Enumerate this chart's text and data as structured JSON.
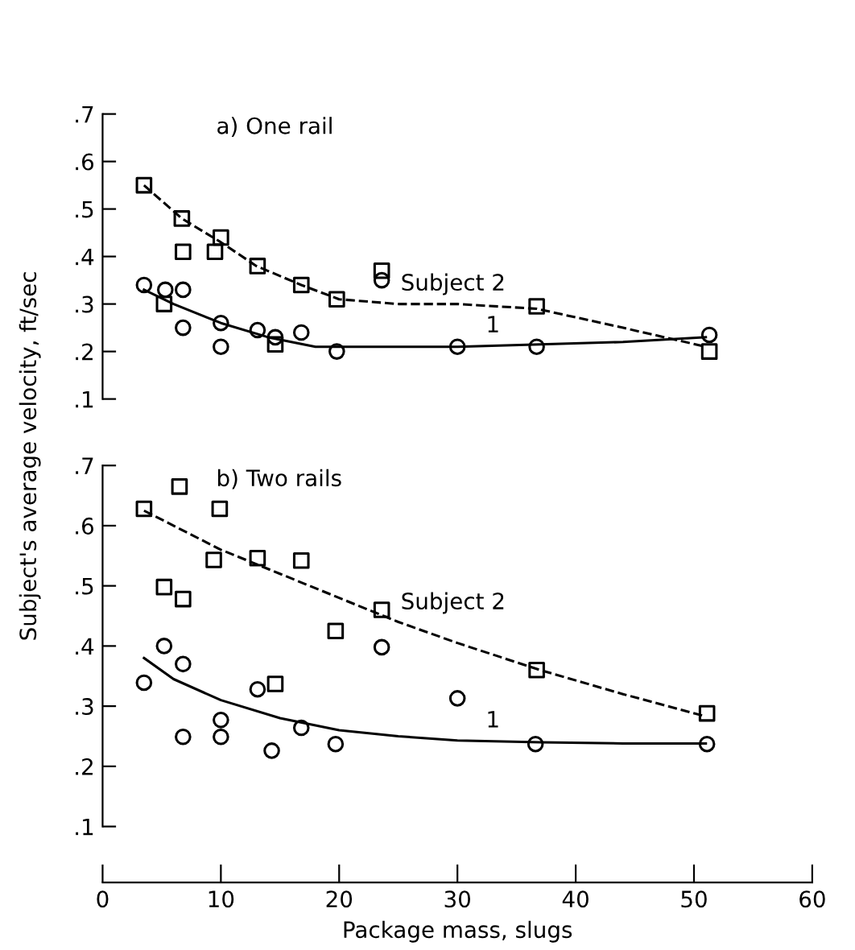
{
  "chart_data": [
    {
      "type": "scatter",
      "title": "a) One rail",
      "ylabel": "Subject's average velocity, ft/sec",
      "xlim": [
        0,
        60
      ],
      "ylim": [
        0.1,
        0.7
      ],
      "tick_labels": "y",
      "grid": false,
      "legend": false,
      "yticks": [
        {
          "value": 0.1,
          "label": ".1"
        },
        {
          "value": 0.2,
          "label": ".2"
        },
        {
          "value": 0.3,
          "label": ".3"
        },
        {
          "value": 0.4,
          "label": ".4"
        },
        {
          "value": 0.5,
          "label": ".5"
        },
        {
          "value": 0.6,
          "label": ".6"
        },
        {
          "value": 0.7,
          "label": ".7"
        }
      ],
      "series": [
        {
          "type": "scatter",
          "marker": "square",
          "color": "#000000",
          "x": [
            3.5,
            6.7,
            6.8,
            9.5,
            10.0,
            13.1,
            16.8,
            19.8,
            23.6,
            5.2,
            14.6,
            36.7,
            51.3
          ],
          "values": [
            0.55,
            0.48,
            0.41,
            0.41,
            0.44,
            0.38,
            0.34,
            0.31,
            0.37,
            0.3,
            0.215,
            0.295,
            0.2
          ]
        },
        {
          "type": "scatter",
          "marker": "circle",
          "color": "#000000",
          "x": [
            3.5,
            5.3,
            6.8,
            6.8,
            10.0,
            10.0,
            13.1,
            14.6,
            16.8,
            19.8,
            23.6,
            30.0,
            36.7,
            51.3
          ],
          "values": [
            0.34,
            0.33,
            0.33,
            0.25,
            0.26,
            0.21,
            0.245,
            0.23,
            0.24,
            0.2,
            0.35,
            0.21,
            0.21,
            0.235
          ]
        },
        {
          "type": "line",
          "name": "Subject 2",
          "line_style": "dashed",
          "color": "#000000",
          "x": [
            3.5,
            6.7,
            10,
            13,
            16.8,
            20,
            25,
            30,
            36.7,
            44,
            51
          ],
          "values": [
            0.55,
            0.48,
            0.43,
            0.38,
            0.34,
            0.31,
            0.3,
            0.3,
            0.29,
            0.25,
            0.21
          ]
        },
        {
          "type": "line",
          "name": "1",
          "line_style": "solid",
          "color": "#000000",
          "x": [
            3.5,
            6,
            10,
            14,
            18,
            25,
            30,
            37,
            44,
            51
          ],
          "values": [
            0.33,
            0.3,
            0.26,
            0.23,
            0.21,
            0.21,
            0.21,
            0.215,
            0.22,
            0.23
          ]
        }
      ]
    },
    {
      "type": "scatter",
      "title": "b) Two rails",
      "xlabel": "Package mass, slugs",
      "xlim": [
        0,
        60
      ],
      "ylim": [
        0.1,
        0.7
      ],
      "grid": false,
      "legend": false,
      "xticks": [
        0,
        10,
        20,
        30,
        40,
        50,
        60
      ],
      "yticks": [
        {
          "value": 0.1,
          "label": ".1"
        },
        {
          "value": 0.2,
          "label": ".2"
        },
        {
          "value": 0.3,
          "label": ".3"
        },
        {
          "value": 0.4,
          "label": ".4"
        },
        {
          "value": 0.5,
          "label": ".5"
        },
        {
          "value": 0.6,
          "label": ".6"
        },
        {
          "value": 0.7,
          "label": ".7"
        }
      ],
      "series": [
        {
          "type": "scatter",
          "marker": "square",
          "color": "#000000",
          "x": [
            3.5,
            6.5,
            9.9,
            9.4,
            5.2,
            6.8,
            13.1,
            16.8,
            19.7,
            23.6,
            14.6,
            36.7,
            51.1
          ],
          "values": [
            0.628,
            0.665,
            0.628,
            0.543,
            0.498,
            0.478,
            0.546,
            0.542,
            0.425,
            0.46,
            0.337,
            0.36,
            0.288
          ]
        },
        {
          "type": "scatter",
          "marker": "circle",
          "color": "#000000",
          "x": [
            3.5,
            5.2,
            6.8,
            6.8,
            10.0,
            10.0,
            13.1,
            14.3,
            16.8,
            19.7,
            23.6,
            30.0,
            36.6,
            51.1
          ],
          "values": [
            0.339,
            0.4,
            0.37,
            0.249,
            0.277,
            0.249,
            0.328,
            0.226,
            0.264,
            0.237,
            0.398,
            0.313,
            0.237,
            0.237
          ]
        },
        {
          "type": "line",
          "name": "Subject 2",
          "line_style": "dashed",
          "color": "#000000",
          "x": [
            3.5,
            10,
            15,
            20,
            25,
            30,
            37,
            44,
            51
          ],
          "values": [
            0.625,
            0.56,
            0.52,
            0.48,
            0.44,
            0.405,
            0.36,
            0.32,
            0.283
          ]
        },
        {
          "type": "line",
          "name": "1",
          "line_style": "solid",
          "color": "#000000",
          "x": [
            3.5,
            6,
            10,
            15,
            20,
            25,
            30,
            37,
            44,
            51
          ],
          "values": [
            0.38,
            0.345,
            0.31,
            0.28,
            0.26,
            0.25,
            0.243,
            0.24,
            0.238,
            0.238
          ]
        }
      ]
    }
  ]
}
